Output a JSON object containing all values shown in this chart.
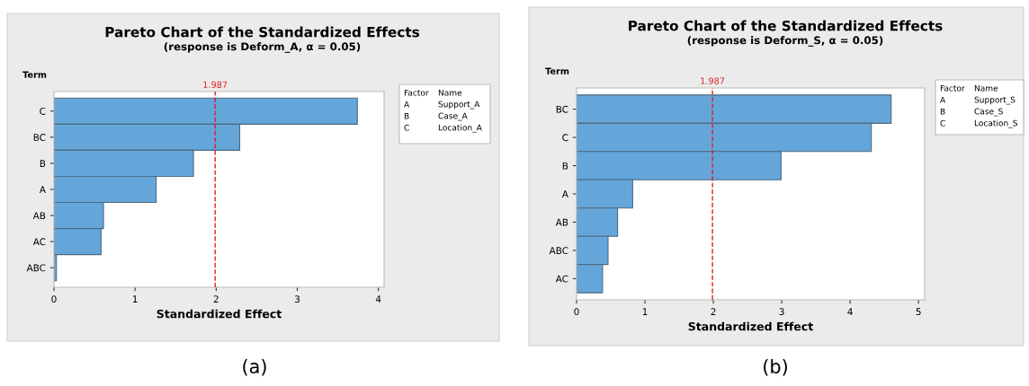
{
  "chart_data": [
    {
      "type": "bar",
      "orientation": "horizontal",
      "title": "Pareto Chart of the Standardized Effects",
      "subtitle": "(response is Deform_A, α = 0.05)",
      "xlabel": "Standardized Effect",
      "ylabel": "Term",
      "categories": [
        "C",
        "BC",
        "B",
        "A",
        "AB",
        "AC",
        "ABC"
      ],
      "values": [
        3.74,
        2.29,
        1.72,
        1.26,
        0.61,
        0.58,
        0.03
      ],
      "color": "#65a6da",
      "xlim": [
        0,
        4.07
      ],
      "xticks": [
        0,
        1,
        2,
        3,
        4
      ],
      "grid": false,
      "legend": false,
      "ref_lines": [
        {
          "axis": "x",
          "value": 1.987,
          "label": "1.987",
          "color": "#e02020",
          "line_style": "dashed"
        }
      ],
      "annotations": [
        "(a)",
        "Factor",
        "Name",
        "A",
        "Support_A",
        "B",
        "Case_A",
        "C",
        "Location_A"
      ]
    },
    {
      "type": "bar",
      "orientation": "horizontal",
      "title": "Pareto Chart of the Standardized Effects",
      "subtitle": "(response is Deform_S, α = 0.05)",
      "xlabel": "Standardized Effect",
      "ylabel": "Term",
      "categories": [
        "BC",
        "C",
        "B",
        "A",
        "AB",
        "ABC",
        "AC"
      ],
      "values": [
        4.6,
        4.31,
        2.99,
        0.82,
        0.6,
        0.46,
        0.38
      ],
      "color": "#65a6da",
      "xlim": [
        0,
        5.09
      ],
      "xticks": [
        0,
        1,
        2,
        3,
        4,
        5
      ],
      "grid": false,
      "legend": false,
      "ref_lines": [
        {
          "axis": "x",
          "value": 1.987,
          "label": "1.987",
          "color": "#e02020",
          "line_style": "dashed"
        }
      ],
      "annotations": [
        "(b)",
        "Factor",
        "Name",
        "A",
        "Support_S",
        "B",
        "Case_S",
        "C",
        "Location_S"
      ]
    }
  ]
}
